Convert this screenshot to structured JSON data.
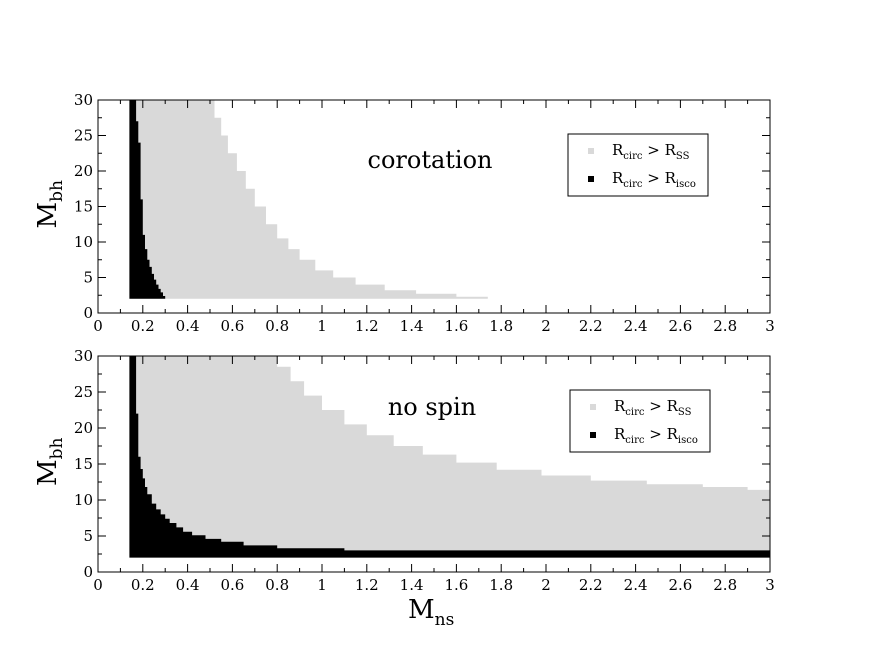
{
  "chart_data": [
    {
      "type": "area",
      "annotation": "corotation",
      "xlabel": "",
      "ylabel": {
        "main": "M",
        "sub": "bh"
      },
      "xlim": [
        0,
        3
      ],
      "ylim": [
        0,
        30
      ],
      "x_ticks": [
        {
          "value": 0,
          "label": "0"
        },
        {
          "value": 0.2,
          "label": "0.2"
        },
        {
          "value": 0.4,
          "label": "0.4"
        },
        {
          "value": 0.6,
          "label": "0.6"
        },
        {
          "value": 0.8,
          "label": "0.8"
        },
        {
          "value": 1,
          "label": "1"
        },
        {
          "value": 1.2,
          "label": "1.2"
        },
        {
          "value": 1.4,
          "label": "1.4"
        },
        {
          "value": 1.6,
          "label": "1.6"
        },
        {
          "value": 1.8,
          "label": "1.8"
        },
        {
          "value": 2,
          "label": "2"
        },
        {
          "value": 2.2,
          "label": "2.2"
        },
        {
          "value": 2.4,
          "label": "2.4"
        },
        {
          "value": 2.6,
          "label": "2.6"
        },
        {
          "value": 2.8,
          "label": "2.8"
        },
        {
          "value": 3,
          "label": "3"
        }
      ],
      "y_ticks": [
        {
          "value": 0,
          "label": "0"
        },
        {
          "value": 5,
          "label": "5"
        },
        {
          "value": 10,
          "label": "10"
        },
        {
          "value": 15,
          "label": "15"
        },
        {
          "value": 20,
          "label": "20"
        },
        {
          "value": 25,
          "label": "25"
        },
        {
          "value": 30,
          "label": "30"
        }
      ],
      "legend_position": "top-right",
      "series": [
        {
          "legend": {
            "main": "R",
            "sub1": "circ",
            "mid": " > R",
            "sub2": "SS"
          },
          "color": "#d9d9d9",
          "y_min": 2,
          "boundary_x": [
            0.14,
            0.5,
            0.52,
            0.55,
            0.58,
            0.62,
            0.66,
            0.7,
            0.75,
            0.8,
            0.85,
            0.9,
            0.97,
            1.05,
            1.15,
            1.28,
            1.42,
            1.6,
            1.74
          ],
          "boundary_y": [
            30,
            30,
            27.5,
            25,
            22.5,
            20,
            17.5,
            15,
            12.5,
            10.5,
            9,
            7.5,
            6,
            5,
            4,
            3.2,
            2.7,
            2.3,
            2
          ]
        },
        {
          "legend": {
            "main": "R",
            "sub1": "circ",
            "mid": " > R",
            "sub2": "isco"
          },
          "color": "#000000",
          "y_min": 2,
          "boundary_x": [
            0.14,
            0.16,
            0.17,
            0.18,
            0.19,
            0.2,
            0.21,
            0.22,
            0.23,
            0.24,
            0.25,
            0.26,
            0.27,
            0.28,
            0.29,
            0.3
          ],
          "boundary_y": [
            30,
            30,
            27,
            24,
            16,
            11,
            9,
            7.5,
            6.5,
            5.5,
            4.7,
            4,
            3.4,
            2.9,
            2.4,
            2
          ]
        }
      ]
    },
    {
      "type": "area",
      "annotation": "no spin",
      "xlabel": {
        "main": "M",
        "sub": "ns"
      },
      "ylabel": {
        "main": "M",
        "sub": "bh"
      },
      "xlim": [
        0,
        3
      ],
      "ylim": [
        0,
        30
      ],
      "x_ticks": [
        {
          "value": 0,
          "label": "0"
        },
        {
          "value": 0.2,
          "label": "0.2"
        },
        {
          "value": 0.4,
          "label": "0.4"
        },
        {
          "value": 0.6,
          "label": "0.6"
        },
        {
          "value": 0.8,
          "label": "0.8"
        },
        {
          "value": 1,
          "label": "1"
        },
        {
          "value": 1.2,
          "label": "1.2"
        },
        {
          "value": 1.4,
          "label": "1.4"
        },
        {
          "value": 1.6,
          "label": "1.6"
        },
        {
          "value": 1.8,
          "label": "1.8"
        },
        {
          "value": 2,
          "label": "2"
        },
        {
          "value": 2.2,
          "label": "2.2"
        },
        {
          "value": 2.4,
          "label": "2.4"
        },
        {
          "value": 2.6,
          "label": "2.6"
        },
        {
          "value": 2.8,
          "label": "2.8"
        },
        {
          "value": 3,
          "label": "3"
        }
      ],
      "y_ticks": [
        {
          "value": 0,
          "label": "0"
        },
        {
          "value": 5,
          "label": "5"
        },
        {
          "value": 10,
          "label": "10"
        },
        {
          "value": 15,
          "label": "15"
        },
        {
          "value": 20,
          "label": "20"
        },
        {
          "value": 25,
          "label": "25"
        },
        {
          "value": 30,
          "label": "30"
        }
      ],
      "legend_position": "top-right",
      "series": [
        {
          "legend": {
            "main": "R",
            "sub1": "circ",
            "mid": " > R",
            "sub2": "SS"
          },
          "color": "#d9d9d9",
          "y_min": 2,
          "boundary_x": [
            0.14,
            0.76,
            0.8,
            0.86,
            0.92,
            1.0,
            1.1,
            1.2,
            1.32,
            1.45,
            1.6,
            1.78,
            1.98,
            2.2,
            2.45,
            2.7,
            2.9,
            3.0
          ],
          "boundary_y": [
            30,
            30,
            28.5,
            26.5,
            24.5,
            22.5,
            20.5,
            19,
            17.5,
            16.3,
            15.2,
            14.2,
            13.4,
            12.7,
            12.2,
            11.8,
            11.4,
            11
          ]
        },
        {
          "legend": {
            "main": "R",
            "sub1": "circ",
            "mid": " > R",
            "sub2": "isco"
          },
          "color": "#000000",
          "y_min": 2,
          "boundary_x": [
            0.14,
            0.16,
            0.17,
            0.18,
            0.19,
            0.2,
            0.21,
            0.22,
            0.24,
            0.26,
            0.28,
            0.3,
            0.32,
            0.35,
            0.38,
            0.42,
            0.48,
            0.55,
            0.65,
            0.8,
            1.1,
            3.0
          ],
          "boundary_y": [
            30,
            30,
            22,
            16,
            14.3,
            13,
            11.8,
            10.8,
            9.5,
            8.7,
            8,
            7.4,
            6.8,
            6.2,
            5.6,
            5.1,
            4.6,
            4.2,
            3.7,
            3.3,
            3,
            3
          ]
        }
      ]
    }
  ]
}
